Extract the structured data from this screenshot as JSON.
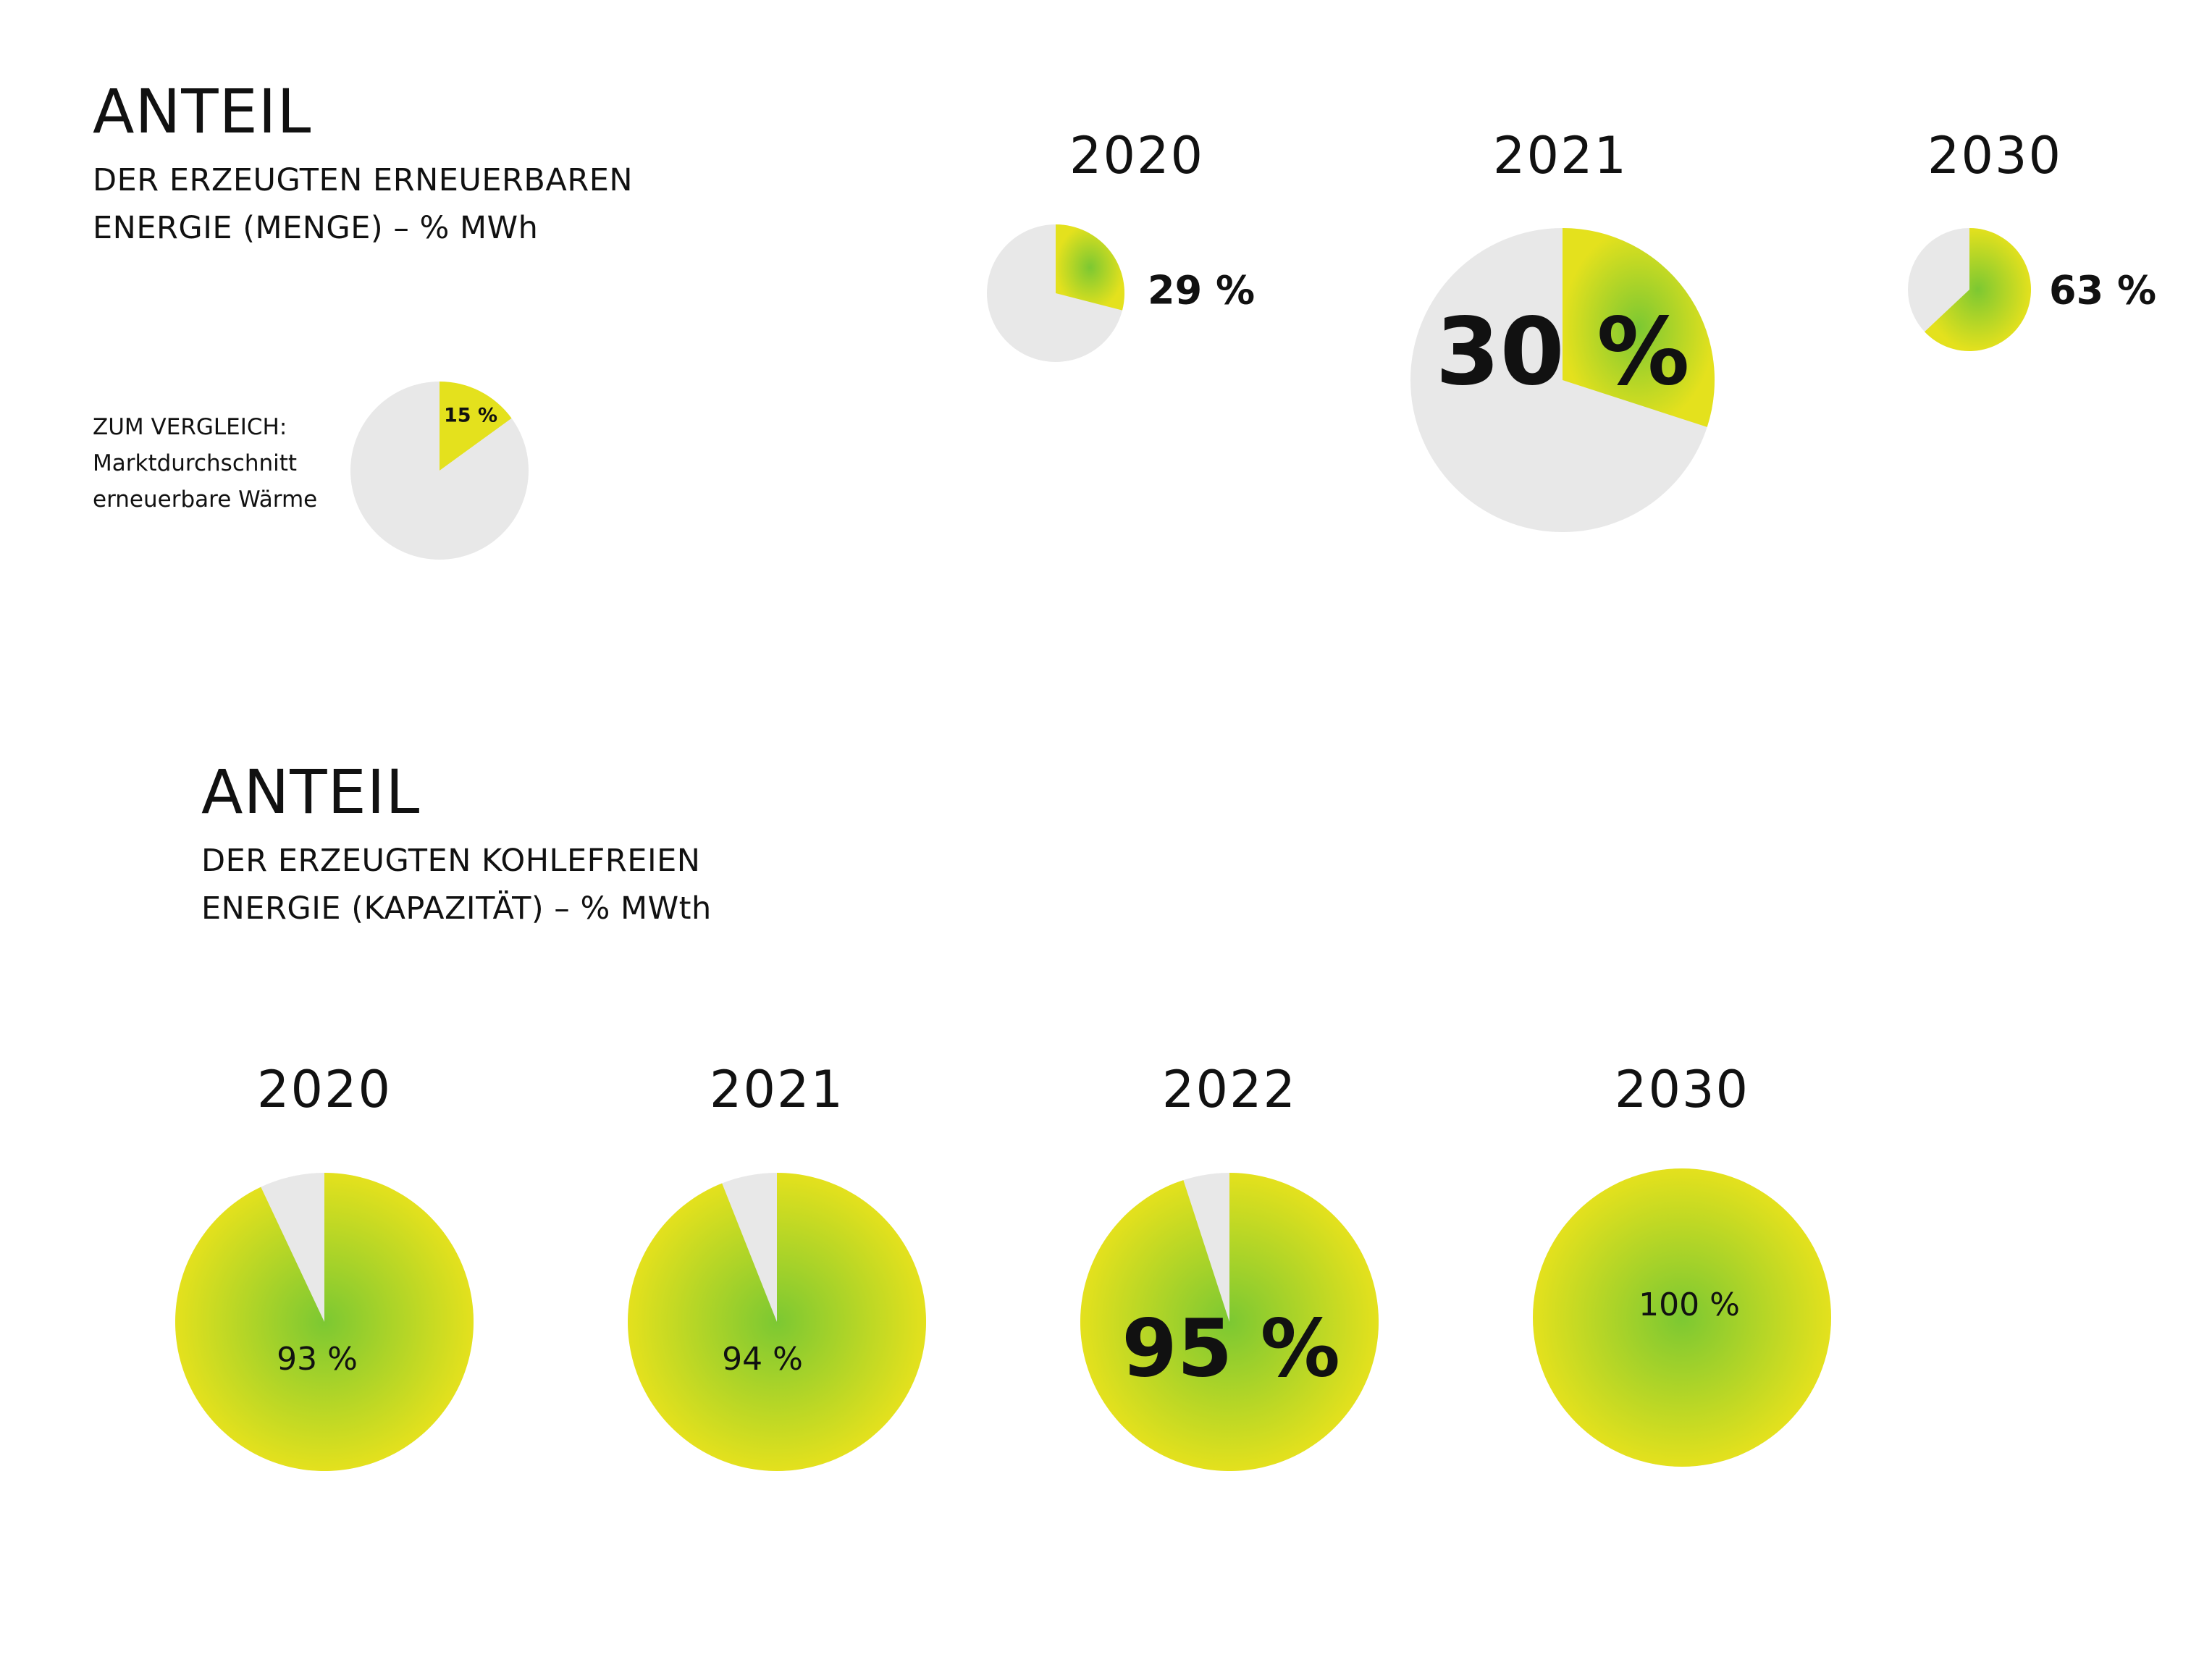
{
  "colors": {
    "share_inner": "#7cc832",
    "share_outer": "#e4e11d",
    "rest": "#e8e8e8",
    "text": "#111111"
  },
  "section_renewable": {
    "title": "ANTEIL",
    "subtitle_line1": "DER ERZEUGTEN ERNEUERBAREN",
    "subtitle_line2": "ENERGIE (MENGE) – % MWh",
    "comparison": {
      "line1": "ZUM VERGLEICH:",
      "line2": "Marktdurchschnitt",
      "line3": "erneuerbare Wärme"
    }
  },
  "section_coalfree": {
    "title": "ANTEIL",
    "subtitle_line1": "DER ERZEUGTEN KOHLEFREIEN",
    "subtitle_line2": "ENERGIE (KAPAZITÄT) – % MWth"
  },
  "chart_data": [
    {
      "type": "pie",
      "title": "ANTEIL DER ERZEUGTEN ERNEUERBAREN ENERGIE (MENGE) – % MWh",
      "categories": [
        "2020",
        "2021",
        "2030"
      ],
      "values": [
        29,
        30,
        63
      ],
      "labels": [
        "29 %",
        "30 %",
        "63 %"
      ],
      "comparison": {
        "label": "ZUM VERGLEICH: Marktdurchschnitt erneuerbare Wärme",
        "value": 15,
        "text": "15 %"
      }
    },
    {
      "type": "pie",
      "title": "ANTEIL DER ERZEUGTEN KOHLEFREIEN ENERGIE (KAPAZITÄT) – % MWth",
      "categories": [
        "2020",
        "2021",
        "2022",
        "2030"
      ],
      "values": [
        93,
        94,
        95,
        100
      ],
      "labels": [
        "93 %",
        "94 %",
        "95 %",
        "100 %"
      ]
    }
  ]
}
